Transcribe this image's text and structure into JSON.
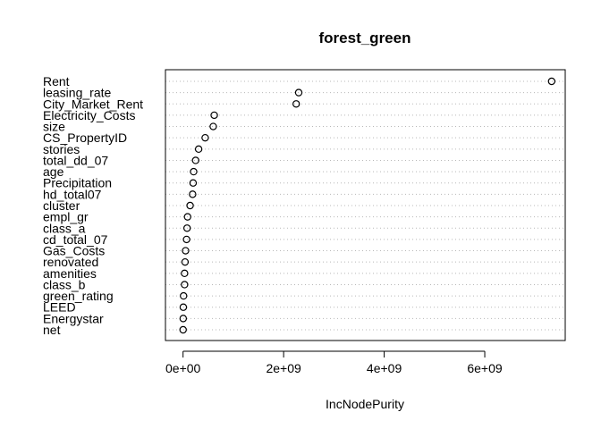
{
  "chart_data": {
    "type": "scatter",
    "title": "forest_green",
    "xlabel": "IncNodePurity",
    "ylabel": "",
    "xlim": [
      -350000000.0,
      7600000000.0
    ],
    "grid": "dotted horizontal guide lines",
    "x_ticks": [
      {
        "value": 0,
        "label": "0e+00"
      },
      {
        "value": 2000000000,
        "label": "2e+09"
      },
      {
        "value": 4000000000,
        "label": "4e+09"
      },
      {
        "value": 6000000000,
        "label": "6e+09"
      }
    ],
    "categories": [
      "Rent",
      "leasing_rate",
      "City_Market_Rent",
      "Electricity_Costs",
      "size",
      "CS_PropertyID",
      "stories",
      "total_dd_07",
      "age",
      "Precipitation",
      "hd_total07",
      "cluster",
      "empl_gr",
      "class_a",
      "cd_total_07",
      "Gas_Costs",
      "renovated",
      "amenities",
      "class_b",
      "green_rating",
      "LEED",
      "Energystar",
      "net"
    ],
    "values": [
      7330000000,
      2300000000,
      2250000000,
      620000000,
      600000000,
      440000000,
      310000000,
      250000000,
      210000000,
      200000000,
      190000000,
      140000000,
      90000000,
      80000000,
      70000000,
      50000000,
      40000000,
      30000000,
      30000000,
      10000000,
      5000000,
      3000000,
      1000000
    ]
  }
}
